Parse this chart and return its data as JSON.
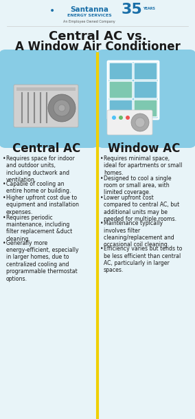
{
  "bg_color": "#e8f4f8",
  "title_line1": "Central AC vs.",
  "title_line2": "A Window Air Conditioner",
  "divider_color": "#f0d000",
  "left_header": "Central AC",
  "right_header": "Window AC",
  "left_blob_color": "#7ec8e3",
  "right_blob_color": "#7ec8e3",
  "left_bullets": [
    "Requires space for indoor\nand outdoor units,\nincluding ductwork and\nventilation.",
    "Capable of cooling an\nentire home or building.",
    "Higher upfront cost due to\nequipment and installation\nexpenses.",
    "Requires periodic\nmaintenance, including\nfilter replacement &duct\ncleaning.",
    "Generally more\nenergy-efficient, especially\nin larger homes, due to\ncentralized cooling and\nprogrammable thermostat\noptions."
  ],
  "right_bullets": [
    "Requires minimal space,\nideal for apartments or small\nhomes.",
    "Designed to cool a single\nroom or small area, with\nlimited coverage.",
    "Lower upfront cost\ncompared to central AC, but\nadditional units may be\nneeded for multiple rooms.",
    "Maintenance typically\ninvolves filter\ncleaning/replacement and\noccasional coil cleaning.",
    "Efficiency varies but tends to\nbe less efficient than central\nAC, particularly in larger\nspaces."
  ],
  "font_color": "#1a1a1a",
  "header_color": "#1a1a1a",
  "bullet_color": "#1a1a1a",
  "logo_color": "#1a6fa8",
  "logo_sub_color": "#555555",
  "divider_line_color": "#cccccc",
  "blob_ac_color": "#d0d0d0",
  "blob_ac_edge": "#aaaaaa",
  "grill_color": "#888888",
  "fan_color": "#888888",
  "fan_edge": "#666666",
  "fan_inner_color": "#999999",
  "fan_inner_edge": "#777777",
  "fan_center_color": "#aaaaaa",
  "fan_center_edge": "#888888",
  "ac_top_bar": "#bbbbbb",
  "pane_colors": [
    "#6dbbd4",
    "#6dbbd4",
    "#7ec8b0",
    "#6dbbd4",
    "#6dbbd4",
    "#7ec8b0"
  ],
  "wac_body_color": "#f0f0f0",
  "wac_body_edge": "#cccccc",
  "wac_dot_colors": [
    "#4fc3f7",
    "#66bb6a",
    "#ef5350"
  ],
  "wac_fan_color": "#aaaaaa",
  "wac_fan_edge": "#888888",
  "wac_fan2_color": "#bbbbbb",
  "wac_fan2_edge": "#999999"
}
